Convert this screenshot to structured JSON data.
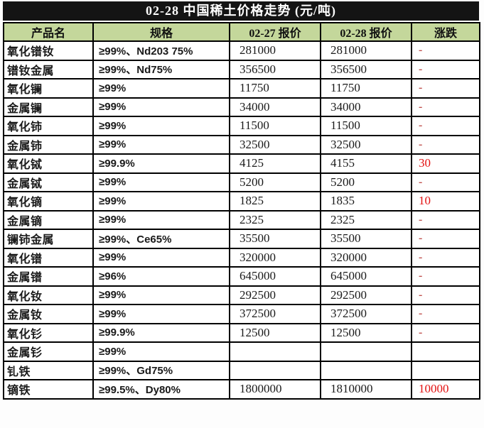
{
  "title": "02-28 中国稀土价格走势 (元/吨)",
  "colors": {
    "title_bg": "#141414",
    "title_text": "#ffffff",
    "header_bg": "#c4d79b",
    "grid_border": "#000000",
    "change_value_red": "#e31111",
    "dash_red": "#c0504d"
  },
  "chart_data": {
    "type": "table",
    "title": "02-28 中国稀土价格走势 (元/吨)",
    "columns": [
      "产品名",
      "规格",
      "02-27 报价",
      "02-28 报价",
      "涨跌"
    ],
    "rows": [
      {
        "product": "氧化镨钕",
        "spec": "≥99%、Nd203 75%",
        "price_0227": "281000",
        "price_0228": "281000",
        "change": "-"
      },
      {
        "product": "镨钕金属",
        "spec": "≥99%、Nd75%",
        "price_0227": "356500",
        "price_0228": "356500",
        "change": "-"
      },
      {
        "product": "氧化镧",
        "spec": "≥99%",
        "price_0227": "11750",
        "price_0228": "11750",
        "change": "-"
      },
      {
        "product": "金属镧",
        "spec": "≥99%",
        "price_0227": "34000",
        "price_0228": "34000",
        "change": "-"
      },
      {
        "product": "氧化铈",
        "spec": "≥99%",
        "price_0227": "11500",
        "price_0228": "11500",
        "change": "-"
      },
      {
        "product": "金属铈",
        "spec": "≥99%",
        "price_0227": "32500",
        "price_0228": "32500",
        "change": "-"
      },
      {
        "product": "氧化铽",
        "spec": "≥99.9%",
        "price_0227": "4125",
        "price_0228": "4155",
        "change": "30"
      },
      {
        "product": "金属铽",
        "spec": "≥99%",
        "price_0227": "5200",
        "price_0228": "5200",
        "change": "-"
      },
      {
        "product": "氧化镝",
        "spec": "≥99%",
        "price_0227": "1825",
        "price_0228": "1835",
        "change": "10"
      },
      {
        "product": "金属镝",
        "spec": "≥99%",
        "price_0227": "2325",
        "price_0228": "2325",
        "change": "-"
      },
      {
        "product": "镧铈金属",
        "spec": "≥99%、Ce65%",
        "price_0227": "35500",
        "price_0228": "35500",
        "change": "-"
      },
      {
        "product": "氧化镨",
        "spec": "≥99%",
        "price_0227": "320000",
        "price_0228": "320000",
        "change": "-"
      },
      {
        "product": "金属镨",
        "spec": "≥96%",
        "price_0227": "645000",
        "price_0228": "645000",
        "change": "-"
      },
      {
        "product": "氧化钕",
        "spec": "≥99%",
        "price_0227": "292500",
        "price_0228": "292500",
        "change": "-"
      },
      {
        "product": "金属钕",
        "spec": "≥99%",
        "price_0227": "372500",
        "price_0228": "372500",
        "change": "-"
      },
      {
        "product": "氧化钐",
        "spec": "≥99.9%",
        "price_0227": "12500",
        "price_0228": "12500",
        "change": "-"
      },
      {
        "product": "金属钐",
        "spec": "≥99%",
        "price_0227": "",
        "price_0228": "",
        "change": ""
      },
      {
        "product": "钆铁",
        "spec": "≥99%、Gd75%",
        "price_0227": "",
        "price_0228": "",
        "change": ""
      },
      {
        "product": "镝铁",
        "spec": "≥99.5%、Dy80%",
        "price_0227": "1800000",
        "price_0228": "1810000",
        "change": "10000"
      }
    ]
  }
}
